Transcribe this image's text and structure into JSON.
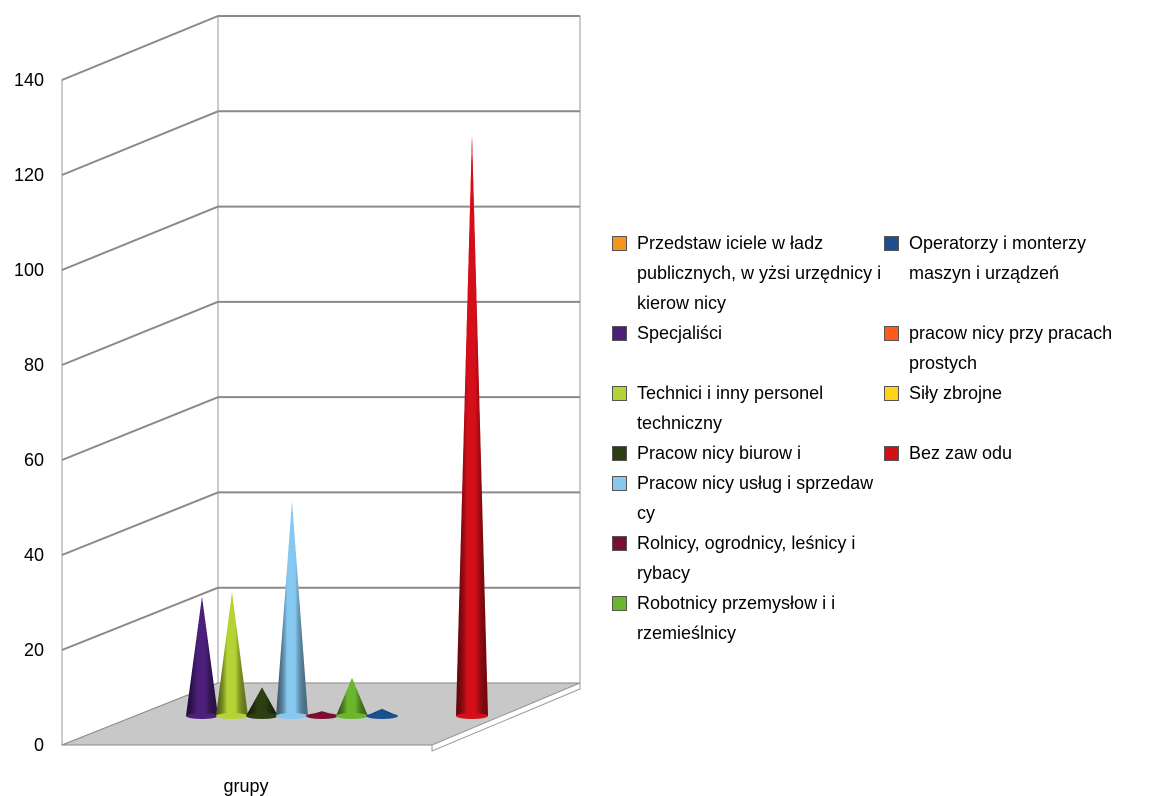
{
  "chart_data": {
    "type": "bar",
    "subtype": "3d-cone",
    "categories": [
      "grupy"
    ],
    "xlabel": "",
    "ylabel": "",
    "ylim": [
      0,
      140
    ],
    "y_ticks": [
      0,
      20,
      40,
      60,
      80,
      100,
      120,
      140
    ],
    "grid": true,
    "legend_position": "right",
    "series": [
      {
        "name": "Przedstaw iciele w ładz publicznych, w yżsi urzędnicy i kierow nicy",
        "values": [
          0
        ],
        "color": "#f7941d"
      },
      {
        "name": "Specjaliści",
        "values": [
          25
        ],
        "color": "#4b1f7a"
      },
      {
        "name": "Technici i inny personel techniczny",
        "values": [
          26
        ],
        "color": "#b5d334"
      },
      {
        "name": "Pracow nicy biurow i",
        "values": [
          6
        ],
        "color": "#2d3f12"
      },
      {
        "name": "Pracow nicy usług i sprzedaw cy",
        "values": [
          45
        ],
        "color": "#87c8f0"
      },
      {
        "name": "Rolnicy, ogrodnicy, leśnicy i rybacy",
        "values": [
          1
        ],
        "color": "#7a1030"
      },
      {
        "name": "Robotnicy przemysłow i i rzemieślnicy",
        "values": [
          8
        ],
        "color": "#6cb62e"
      },
      {
        "name": "Operatorzy i monterzy maszyn i urządzeń",
        "values": [
          1.5
        ],
        "color": "#1b4f8f"
      },
      {
        "name": "pracow nicy przy pracach prostych",
        "values": [
          0
        ],
        "color": "#ff5a1a"
      },
      {
        "name": "Siły zbrojne",
        "values": [
          0
        ],
        "color": "#ffd21a"
      },
      {
        "name": "Bez zaw odu",
        "values": [
          122
        ],
        "color": "#d40f1a"
      }
    ]
  }
}
